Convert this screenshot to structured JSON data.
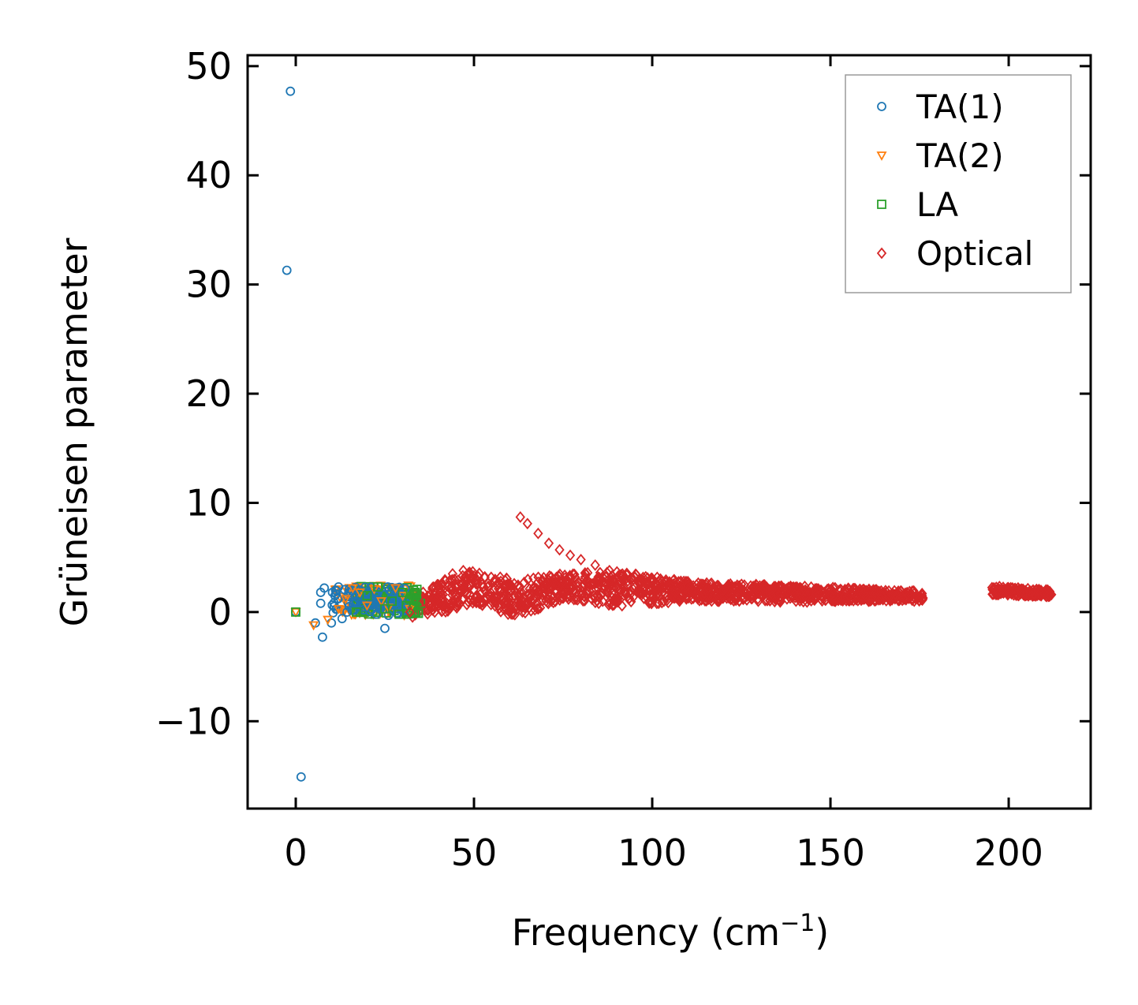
{
  "chart_data": {
    "type": "scatter",
    "xlabel": "Frequency (cm",
    "xlabel_sup": "−1",
    "xlabel_suffix": ")",
    "ylabel": "Grüneisen parameter",
    "xlim": [
      -13.5,
      223
    ],
    "ylim": [
      -18,
      51
    ],
    "xticks": [
      0,
      50,
      100,
      150,
      200
    ],
    "xtick_labels": [
      "0",
      "50",
      "100",
      "150",
      "200"
    ],
    "yticks": [
      -10,
      0,
      10,
      20,
      30,
      40,
      50
    ],
    "ytick_labels": [
      "−10",
      "0",
      "10",
      "20",
      "30",
      "40",
      "50"
    ],
    "grid": false,
    "legend_position": "top-right",
    "series": [
      {
        "name": "TA(1)",
        "marker": "circle",
        "color": "#1f77b4",
        "points": [
          [
            -1.5,
            47.7
          ],
          [
            -2.5,
            31.3
          ],
          [
            1.5,
            -15.1
          ],
          [
            0.0,
            0.0
          ],
          [
            5.5,
            -1.0
          ],
          [
            7.5,
            -2.3
          ],
          [
            7.0,
            0.8
          ],
          [
            7.0,
            1.8
          ],
          [
            8.0,
            2.2
          ],
          [
            10.0,
            -1.0
          ],
          [
            11.0,
            1.5
          ],
          [
            12.0,
            2.3
          ],
          [
            13.0,
            -0.6
          ],
          [
            15.0,
            0.5
          ],
          [
            17.0,
            1.0
          ],
          [
            19.0,
            0.2
          ],
          [
            21.0,
            1.3
          ],
          [
            23.0,
            0.6
          ],
          [
            25.0,
            -1.5
          ],
          [
            26.0,
            -0.3
          ],
          [
            27.0,
            1.2
          ],
          [
            28.0,
            1.7
          ],
          [
            29.0,
            2.0
          ],
          [
            30.0,
            1.5
          ],
          [
            31.0,
            0.8
          ]
        ]
      },
      {
        "name": "TA(2)",
        "marker": "triangle-down",
        "color": "#ff7f0e",
        "points": [
          [
            0.0,
            0.0
          ],
          [
            5.0,
            -1.2
          ],
          [
            9.0,
            -0.7
          ],
          [
            12.0,
            0.3
          ],
          [
            14.0,
            1.2
          ],
          [
            16.0,
            2.2
          ],
          [
            18.0,
            1.8
          ],
          [
            20.0,
            0.6
          ],
          [
            22.0,
            2.1
          ],
          [
            24.0,
            1.0
          ],
          [
            26.0,
            0.4
          ],
          [
            28.0,
            2.2
          ],
          [
            30.0,
            1.5
          ],
          [
            32.0,
            0.3
          ]
        ]
      },
      {
        "name": "LA",
        "marker": "square",
        "color": "#2ca02c",
        "points": [
          [
            0.0,
            0.0
          ],
          [
            17.0,
            0.0
          ],
          [
            20.0,
            1.5
          ],
          [
            23.0,
            2.3
          ],
          [
            25.0,
            0.3
          ],
          [
            27.0,
            1.0
          ],
          [
            29.0,
            -0.2
          ],
          [
            30.0,
            1.8
          ],
          [
            31.0,
            0.6
          ],
          [
            32.0,
            1.2
          ],
          [
            33.0,
            0.4
          ],
          [
            34.0,
            1.0
          ],
          [
            35.0,
            0.8
          ]
        ]
      },
      {
        "name": "Optical",
        "marker": "diamond",
        "color": "#d62728",
        "points": [
          [
            32.0,
            0.0
          ],
          [
            36.0,
            1.0
          ],
          [
            40.0,
            2.5
          ],
          [
            44.0,
            3.5
          ],
          [
            47.0,
            3.8
          ],
          [
            50.0,
            2.8
          ],
          [
            53.0,
            2.0
          ],
          [
            56.0,
            1.0
          ],
          [
            60.0,
            0.0
          ],
          [
            63.0,
            0.5
          ],
          [
            66.0,
            1.5
          ],
          [
            70.0,
            1.8
          ],
          [
            73.0,
            2.5
          ],
          [
            76.0,
            3.0
          ],
          [
            63.0,
            8.7
          ],
          [
            65.0,
            8.1
          ],
          [
            68.0,
            7.2
          ],
          [
            71.0,
            6.3
          ],
          [
            74.0,
            5.7
          ],
          [
            77.0,
            5.2
          ],
          [
            80.0,
            4.8
          ],
          [
            84.0,
            4.3
          ],
          [
            88.0,
            3.8
          ],
          [
            80.0,
            1.5
          ],
          [
            85.0,
            0.8
          ],
          [
            90.0,
            1.2
          ],
          [
            95.0,
            3.2
          ],
          [
            100.0,
            2.8
          ],
          [
            110.0,
            2.4
          ],
          [
            120.0,
            2.0
          ],
          [
            130.0,
            1.8
          ],
          [
            140.0,
            1.6
          ],
          [
            150.0,
            1.5
          ],
          [
            160.0,
            1.4
          ],
          [
            170.0,
            1.4
          ],
          [
            175.0,
            1.4
          ],
          [
            196.0,
            2.1
          ],
          [
            200.0,
            1.9
          ],
          [
            205.0,
            1.8
          ],
          [
            210.0,
            1.7
          ],
          [
            212.0,
            1.6
          ]
        ],
        "bands": [
          {
            "x_from": 32,
            "x_to": 42,
            "y_low_from": -0.5,
            "y_low_to": 0.0,
            "y_high_from": 1.5,
            "y_high_to": 3.0
          },
          {
            "x_from": 42,
            "x_to": 50,
            "y_low_from": 0.0,
            "y_low_to": 0.8,
            "y_high_from": 3.0,
            "y_high_to": 3.8
          },
          {
            "x_from": 50,
            "x_to": 62,
            "y_low_from": 0.8,
            "y_low_to": -0.5,
            "y_high_from": 3.8,
            "y_high_to": 3.0
          },
          {
            "x_from": 62,
            "x_to": 75,
            "y_low_from": -0.5,
            "y_low_to": 1.2,
            "y_high_from": 3.0,
            "y_high_to": 3.5
          },
          {
            "x_from": 75,
            "x_to": 90,
            "y_low_from": 1.2,
            "y_low_to": 0.5,
            "y_high_from": 3.5,
            "y_high_to": 3.8
          },
          {
            "x_from": 90,
            "x_to": 110,
            "y_low_from": 0.5,
            "y_low_to": 1.0,
            "y_high_from": 3.8,
            "y_high_to": 2.8
          },
          {
            "x_from": 110,
            "x_to": 140,
            "y_low_from": 1.0,
            "y_low_to": 0.9,
            "y_high_from": 2.8,
            "y_high_to": 2.4
          },
          {
            "x_from": 140,
            "x_to": 176,
            "y_low_from": 0.9,
            "y_low_to": 1.0,
            "y_high_from": 2.4,
            "y_high_to": 1.9
          },
          {
            "x_from": 195,
            "x_to": 212,
            "y_low_from": 1.6,
            "y_low_to": 1.4,
            "y_high_from": 2.4,
            "y_high_to": 2.0
          }
        ]
      }
    ],
    "cluster": [
      {
        "color": "#ff7f0e",
        "marker": "triangle-down",
        "x_from": 11,
        "x_to": 33,
        "y_from": -0.3,
        "y_to": 2.5
      },
      {
        "color": "#2ca02c",
        "marker": "square",
        "x_from": 17,
        "x_to": 35,
        "y_from": -0.2,
        "y_to": 2.4
      },
      {
        "color": "#1f77b4",
        "marker": "circle",
        "x_from": 10,
        "x_to": 31,
        "y_from": -0.2,
        "y_to": 2.3
      }
    ]
  }
}
